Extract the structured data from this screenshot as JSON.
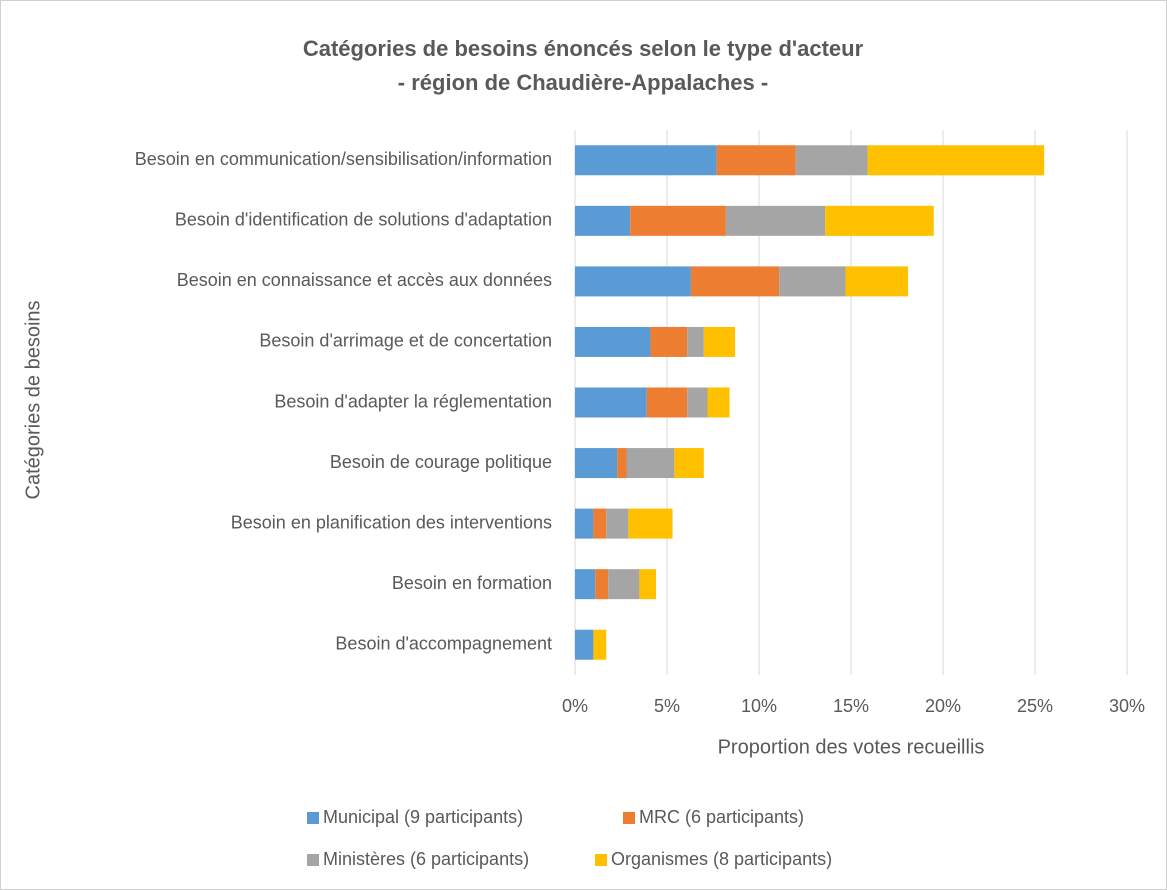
{
  "chart_data": {
    "type": "stacked-barh",
    "title": "Catégories de besoins énoncés selon le type d'acteur",
    "subtitle": "- région de Chaudière-Appalaches -",
    "xlabel": "Proportion des votes recueillis",
    "ylabel": "Catégories de besoins",
    "categories": [
      "Besoin en communication/sensibilisation/information",
      "Besoin d'identification de solutions d'adaptation",
      "Besoin en connaissance et accès aux données",
      "Besoin d'arrimage et de concertation",
      "Besoin d'adapter la réglementation",
      "Besoin de courage politique",
      "Besoin en planification des interventions",
      "Besoin en formation",
      "Besoin d'accompagnement"
    ],
    "series": [
      {
        "name": "Municipal (9 participants)",
        "color": "#5b9bd5",
        "values": [
          7.7,
          3.0,
          6.3,
          4.1,
          3.9,
          2.3,
          1.0,
          1.1,
          1.0
        ]
      },
      {
        "name": "MRC (6 participants)",
        "color": "#ed7d31",
        "values": [
          4.3,
          5.2,
          4.8,
          2.0,
          2.2,
          0.5,
          0.7,
          0.7,
          0
        ]
      },
      {
        "name": "Ministères (6 participants)",
        "color": "#a5a5a5",
        "values": [
          3.9,
          5.4,
          3.6,
          0.9,
          1.1,
          2.6,
          1.2,
          1.7,
          0
        ]
      },
      {
        "name": "Organismes (8 participants)",
        "color": "#ffc000",
        "values": [
          9.6,
          5.9,
          3.4,
          1.7,
          1.2,
          1.6,
          2.4,
          0.9,
          0.7
        ]
      }
    ],
    "xlim": [
      0,
      30
    ],
    "xticks": [
      {
        "value": 0,
        "label": "0%"
      },
      {
        "value": 5,
        "label": "5%"
      },
      {
        "value": 10,
        "label": "10%"
      },
      {
        "value": 15,
        "label": "15%"
      },
      {
        "value": 20,
        "label": "20%"
      },
      {
        "value": 25,
        "label": "25%"
      },
      {
        "value": 30,
        "label": "30%"
      }
    ],
    "grid": true,
    "legend": "bottom"
  }
}
